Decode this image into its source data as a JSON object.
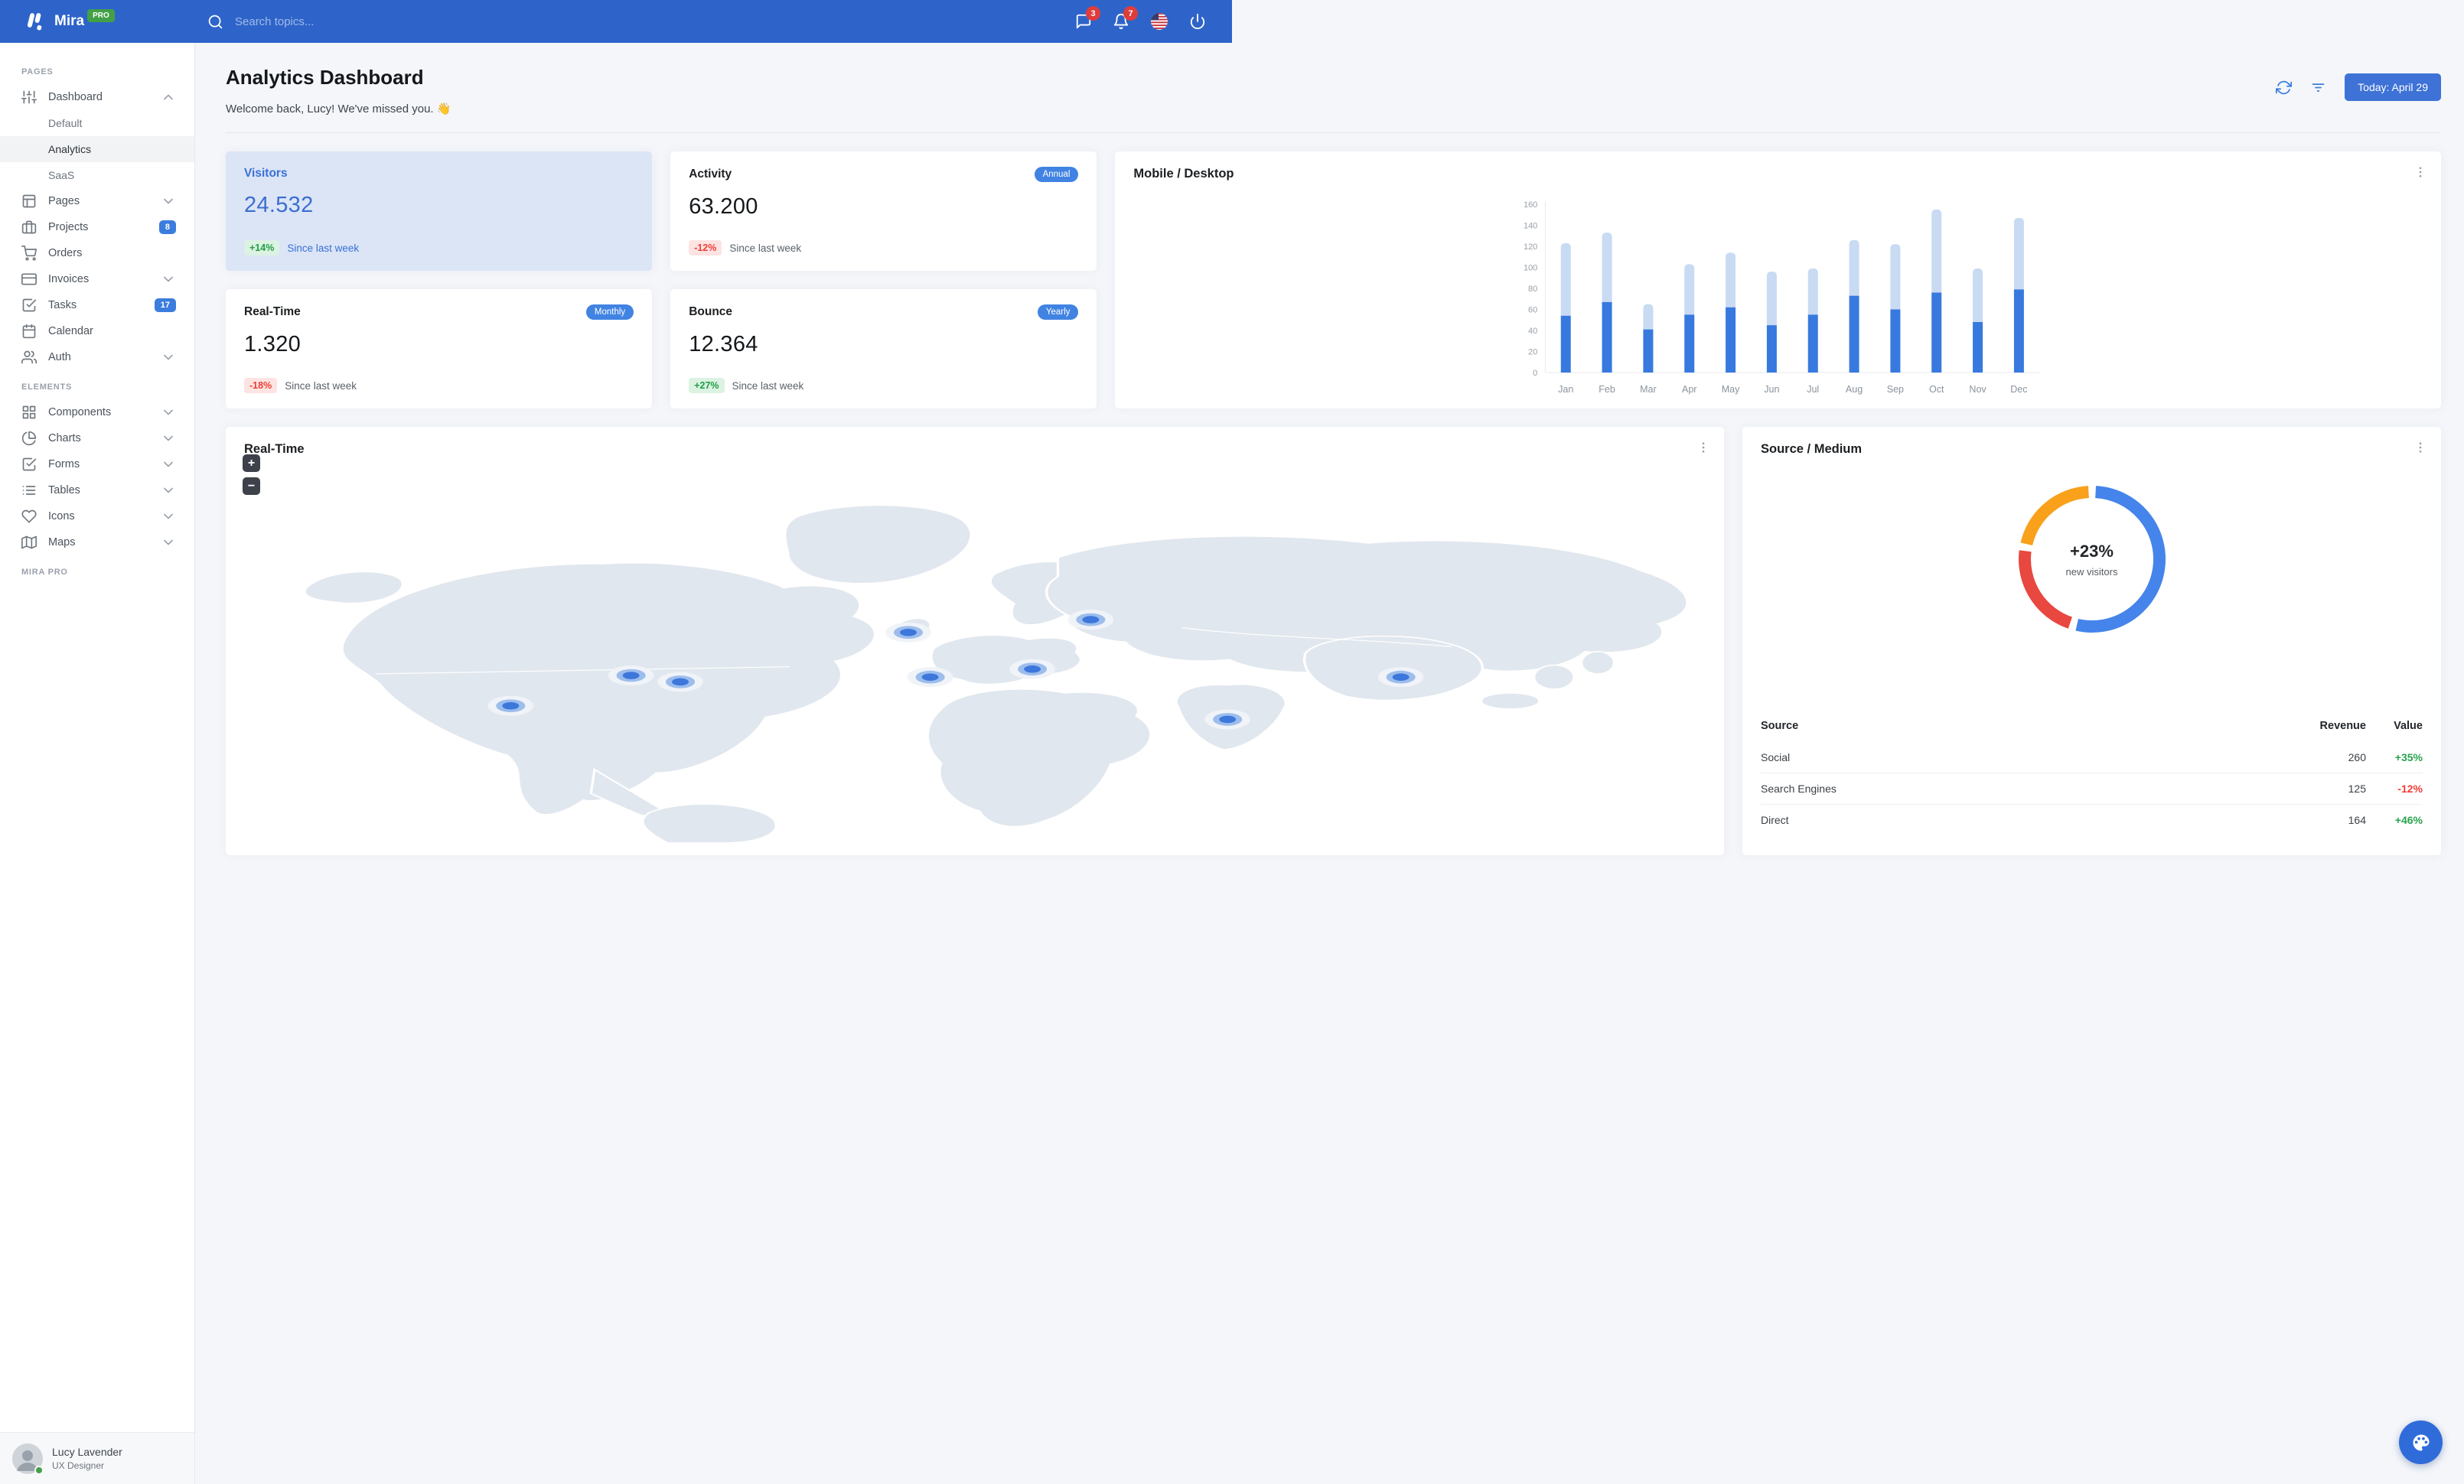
{
  "colors": {
    "navbar": "#2E64C9",
    "primary": "#3B7DDD",
    "success": "#1e9e45",
    "danger": "#ef3e36",
    "bar_mobile": "#3779DE",
    "bar_desktop": "#C9DAF3",
    "donut_blue": "#4584EA",
    "donut_red": "#E8483F",
    "donut_orange": "#F9A11B",
    "map_land": "#E1E7EE",
    "badge_red": "#DF3C3C"
  },
  "navbar": {
    "brand": "Mira",
    "brand_badge": "PRO",
    "search_placeholder": "Search topics...",
    "messages_badge": "3",
    "alerts_badge": "7"
  },
  "sidebar": {
    "sections": [
      {
        "label": "PAGES",
        "items": [
          {
            "label": "Dashboard",
            "icon": "sliders",
            "chevron": "up",
            "children": [
              {
                "label": "Default"
              },
              {
                "label": "Analytics",
                "active": true
              },
              {
                "label": "SaaS"
              }
            ]
          },
          {
            "label": "Pages",
            "icon": "layout",
            "chevron": "down"
          },
          {
            "label": "Projects",
            "icon": "briefcase",
            "badge": "8"
          },
          {
            "label": "Orders",
            "icon": "cart"
          },
          {
            "label": "Invoices",
            "icon": "credit-card",
            "chevron": "down"
          },
          {
            "label": "Tasks",
            "icon": "check-square",
            "badge": "17"
          },
          {
            "label": "Calendar",
            "icon": "calendar"
          },
          {
            "label": "Auth",
            "icon": "users",
            "chevron": "down"
          }
        ]
      },
      {
        "label": "ELEMENTS",
        "items": [
          {
            "label": "Components",
            "icon": "grid",
            "chevron": "down"
          },
          {
            "label": "Charts",
            "icon": "pie-chart",
            "chevron": "down"
          },
          {
            "label": "Forms",
            "icon": "check-square",
            "chevron": "down"
          },
          {
            "label": "Tables",
            "icon": "list",
            "chevron": "down"
          },
          {
            "label": "Icons",
            "icon": "heart",
            "chevron": "down"
          },
          {
            "label": "Maps",
            "icon": "map",
            "chevron": "down"
          }
        ]
      },
      {
        "label": "MIRA PRO",
        "items": []
      }
    ],
    "user": {
      "name": "Lucy Lavender",
      "role": "UX Designer"
    }
  },
  "header": {
    "title": "Analytics Dashboard",
    "subtitle": "Welcome back, Lucy! We've missed you. 👋",
    "date_button": "Today: April 29"
  },
  "stats": [
    {
      "title": "Visitors",
      "value": "24.532",
      "change": "+14%",
      "dir": "up",
      "note": "Since last week",
      "highlight": true
    },
    {
      "title": "Activity",
      "value": "63.200",
      "badge": "Annual",
      "change": "-12%",
      "dir": "down",
      "note": "Since last week"
    },
    {
      "title": "Real-Time",
      "value": "1.320",
      "badge": "Monthly",
      "change": "-18%",
      "dir": "down",
      "note": "Since last week"
    },
    {
      "title": "Bounce",
      "value": "12.364",
      "badge": "Yearly",
      "change": "+27%",
      "dir": "up",
      "note": "Since last week"
    }
  ],
  "chart_data": [
    {
      "type": "bar",
      "stacked": true,
      "title": "Mobile / Desktop",
      "categories": [
        "Jan",
        "Feb",
        "Mar",
        "Apr",
        "May",
        "Jun",
        "Jul",
        "Aug",
        "Sep",
        "Oct",
        "Nov",
        "Dec"
      ],
      "series": [
        {
          "name": "Mobile",
          "color": "#3779DE",
          "values": [
            54,
            67,
            41,
            55,
            62,
            45,
            55,
            73,
            60,
            76,
            48,
            79
          ]
        },
        {
          "name": "Desktop",
          "color": "#C9DAF3",
          "values": [
            69,
            66,
            24,
            48,
            52,
            51,
            44,
            53,
            62,
            79,
            51,
            68
          ]
        }
      ],
      "xlabel": "",
      "ylabel": "",
      "ylim": [
        0,
        160
      ],
      "yticks": [
        0,
        20,
        40,
        60,
        80,
        100,
        120,
        140,
        160
      ],
      "grid": false,
      "legend_position": "none"
    },
    {
      "type": "pie",
      "subtype": "donut",
      "title": "Source / Medium",
      "center_value": "+23%",
      "center_label": "new visitors",
      "slices": [
        {
          "name": "Social",
          "value": 260,
          "color": "#4584EA",
          "start_deg": 3,
          "end_deg": 193
        },
        {
          "name": "Search Engines",
          "value": 125,
          "color": "#E8483F",
          "start_deg": 199,
          "end_deg": 277
        },
        {
          "name": "Direct",
          "value": 164,
          "color": "#F9A11B",
          "start_deg": 283,
          "end_deg": 357
        }
      ],
      "legend_position": "none"
    }
  ],
  "map_card": {
    "title": "Real-Time",
    "zoom_in": "+",
    "zoom_out": "−",
    "markers": [
      {
        "x": 152,
        "y": 298
      },
      {
        "x": 218,
        "y": 260
      },
      {
        "x": 245,
        "y": 268
      },
      {
        "x": 370,
        "y": 206
      },
      {
        "x": 382,
        "y": 262
      },
      {
        "x": 438,
        "y": 252
      },
      {
        "x": 470,
        "y": 190
      },
      {
        "x": 545,
        "y": 315
      },
      {
        "x": 640,
        "y": 262
      }
    ]
  },
  "source_table": {
    "headers": [
      "Source",
      "Revenue",
      "Value"
    ],
    "rows": [
      {
        "source": "Social",
        "revenue": "260",
        "value": "+35%",
        "dir": "up"
      },
      {
        "source": "Search Engines",
        "revenue": "125",
        "value": "-12%",
        "dir": "down"
      },
      {
        "source": "Direct",
        "revenue": "164",
        "value": "+46%",
        "dir": "up"
      }
    ]
  }
}
